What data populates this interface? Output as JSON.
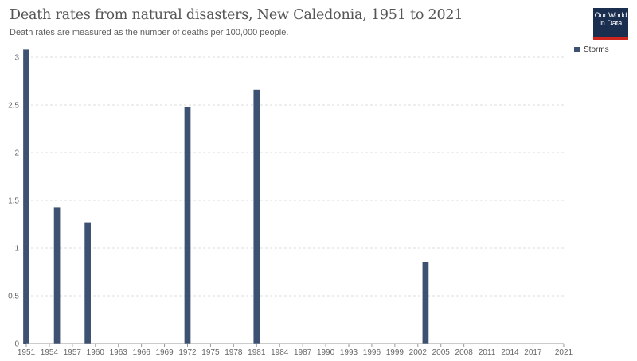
{
  "header": {
    "title": "Death rates from natural disasters, New Caledonia, 1951 to 2021",
    "subtitle": "Death rates are measured as the number of deaths per 100,000 people."
  },
  "logo": {
    "line1": "Our World",
    "line2": "in Data"
  },
  "colors": {
    "series": "#3d5273",
    "logo_bg": "#1a2f4f",
    "logo_accent": "#ce261e",
    "grid": "#dddddd",
    "axis": "#999999"
  },
  "chart_data": {
    "type": "bar",
    "title": "Death rates from natural disasters, New Caledonia, 1951 to 2021",
    "subtitle": "Death rates are measured as the number of deaths per 100,000 people.",
    "xlabel": "",
    "ylabel": "",
    "xlim": [
      1951,
      2021
    ],
    "ylim": [
      0,
      3.1
    ],
    "y_ticks": [
      0,
      0.5,
      1,
      1.5,
      2,
      2.5,
      3
    ],
    "x_ticks": [
      1951,
      1954,
      1957,
      1960,
      1963,
      1966,
      1969,
      1972,
      1975,
      1978,
      1981,
      1984,
      1987,
      1990,
      1993,
      1996,
      1999,
      2002,
      2005,
      2008,
      2011,
      2014,
      2017,
      2021
    ],
    "grid": "horizontal dashed",
    "legend_position": "top-right",
    "series": [
      {
        "name": "Storms",
        "color": "#3d5273",
        "points": [
          {
            "x": 1951,
            "y": 3.08
          },
          {
            "x": 1955,
            "y": 1.43
          },
          {
            "x": 1959,
            "y": 1.27
          },
          {
            "x": 1972,
            "y": 2.48
          },
          {
            "x": 1981,
            "y": 2.66
          },
          {
            "x": 2003,
            "y": 0.85
          }
        ]
      }
    ]
  }
}
